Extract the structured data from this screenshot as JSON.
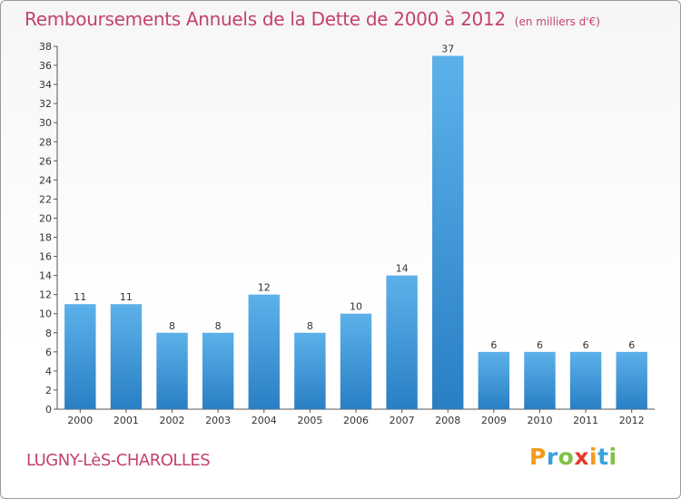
{
  "title": "Remboursements Annuels de la Dette de 2000 à 2012",
  "subtitle": "(en milliers d'€)",
  "place": "LUGNY-LèS-CHAROLLES",
  "logo": {
    "letters": [
      "P",
      "r",
      "o",
      "x",
      "i",
      "t",
      "i"
    ],
    "colors": [
      "#f39a1e",
      "#3aa0dc",
      "#7ec242",
      "#e23c2a",
      "#f39a1e",
      "#3aa0dc",
      "#7ec242"
    ]
  },
  "colors": {
    "bar_light": "#5db1ea",
    "bar_dark": "#2a7fc4",
    "title": "#c3436a"
  },
  "chart_data": {
    "type": "bar",
    "categories": [
      "2000",
      "2001",
      "2002",
      "2003",
      "2004",
      "2005",
      "2006",
      "2007",
      "2008",
      "2009",
      "2010",
      "2011",
      "2012"
    ],
    "values": [
      11,
      11,
      8,
      8,
      12,
      8,
      10,
      14,
      37,
      6,
      6,
      6,
      6
    ],
    "data_labels": [
      "11",
      "11",
      "8",
      "8",
      "12",
      "8",
      "10",
      "14",
      "37",
      "6",
      "6",
      "6",
      "6"
    ],
    "yticks": [
      0,
      2,
      4,
      6,
      8,
      10,
      12,
      14,
      16,
      18,
      20,
      22,
      24,
      26,
      28,
      30,
      32,
      34,
      36,
      38
    ],
    "ylim": [
      0,
      38
    ],
    "grid": false,
    "legend": "none"
  }
}
